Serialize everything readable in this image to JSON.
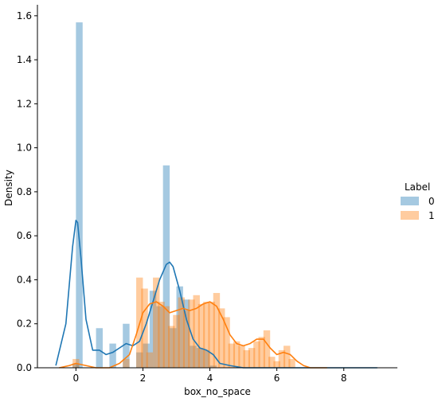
{
  "chart_data": {
    "type": "bar",
    "subtype": "histogram with KDE overlay",
    "title": "",
    "xlabel": "box_no_space",
    "ylabel": "Density",
    "xlim": [
      -1.15,
      9.6
    ],
    "ylim": [
      0,
      1.65
    ],
    "xticks": [
      "0",
      "2",
      "4",
      "6",
      "8"
    ],
    "yticks": [
      "0.0",
      "0.2",
      "0.4",
      "0.6",
      "0.8",
      "1.0",
      "1.2",
      "1.4",
      "1.6"
    ],
    "grid": false,
    "legend": {
      "title": "Label",
      "placement": "right",
      "entries": [
        "0",
        "1"
      ]
    },
    "bin_width": 0.2,
    "series": [
      {
        "name": "0",
        "color": "#1f77b4",
        "bins": [
          {
            "x0": -0.1,
            "y": 0.02
          },
          {
            "x0": 0.0,
            "y": 1.57
          },
          {
            "x0": 0.6,
            "y": 0.18
          },
          {
            "x0": 1.0,
            "y": 0.11
          },
          {
            "x0": 1.4,
            "y": 0.2
          },
          {
            "x0": 1.8,
            "y": 0.07
          },
          {
            "x0": 2.0,
            "y": 0.11
          },
          {
            "x0": 2.2,
            "y": 0.35
          },
          {
            "x0": 2.4,
            "y": 0.28
          },
          {
            "x0": 2.6,
            "y": 0.92
          },
          {
            "x0": 2.8,
            "y": 0.18
          },
          {
            "x0": 3.0,
            "y": 0.37
          },
          {
            "x0": 3.2,
            "y": 0.31
          },
          {
            "x0": 3.4,
            "y": 0.1
          },
          {
            "x0": 3.6,
            "y": 0.09
          },
          {
            "x0": 3.8,
            "y": 0.08
          },
          {
            "x0": 4.0,
            "y": 0.01
          }
        ],
        "kde": {
          "x": [
            -0.6,
            -0.3,
            -0.1,
            0.0,
            0.05,
            0.15,
            0.3,
            0.5,
            0.7,
            0.9,
            1.1,
            1.3,
            1.5,
            1.7,
            1.9,
            2.1,
            2.3,
            2.5,
            2.7,
            2.8,
            2.9,
            3.1,
            3.3,
            3.5,
            3.7,
            3.9,
            4.1,
            4.3,
            4.6,
            5.0,
            6.0,
            7.0,
            9.0
          ],
          "y": [
            0.01,
            0.2,
            0.55,
            0.67,
            0.66,
            0.5,
            0.22,
            0.08,
            0.08,
            0.06,
            0.07,
            0.09,
            0.11,
            0.1,
            0.12,
            0.2,
            0.3,
            0.4,
            0.47,
            0.48,
            0.46,
            0.35,
            0.22,
            0.13,
            0.09,
            0.08,
            0.06,
            0.02,
            0.01,
            0.0,
            0.0,
            0.0,
            0.0
          ]
        }
      },
      {
        "name": "1",
        "color": "#ff7f0e",
        "bins": [
          {
            "x0": -0.1,
            "y": 0.04
          },
          {
            "x0": 1.4,
            "y": 0.04
          },
          {
            "x0": 1.8,
            "y": 0.41
          },
          {
            "x0": 1.95,
            "y": 0.36
          },
          {
            "x0": 2.1,
            "y": 0.07
          },
          {
            "x0": 2.3,
            "y": 0.41
          },
          {
            "x0": 2.45,
            "y": 0.3
          },
          {
            "x0": 2.6,
            "y": 0.28
          },
          {
            "x0": 2.75,
            "y": 0.19
          },
          {
            "x0": 2.9,
            "y": 0.24
          },
          {
            "x0": 3.05,
            "y": 0.32
          },
          {
            "x0": 3.2,
            "y": 0.26
          },
          {
            "x0": 3.35,
            "y": 0.31
          },
          {
            "x0": 3.5,
            "y": 0.33
          },
          {
            "x0": 3.65,
            "y": 0.29
          },
          {
            "x0": 3.8,
            "y": 0.3
          },
          {
            "x0": 3.95,
            "y": 0.3
          },
          {
            "x0": 4.1,
            "y": 0.34
          },
          {
            "x0": 4.25,
            "y": 0.27
          },
          {
            "x0": 4.4,
            "y": 0.23
          },
          {
            "x0": 4.55,
            "y": 0.11
          },
          {
            "x0": 4.7,
            "y": 0.12
          },
          {
            "x0": 4.85,
            "y": 0.1
          },
          {
            "x0": 5.0,
            "y": 0.08
          },
          {
            "x0": 5.15,
            "y": 0.09
          },
          {
            "x0": 5.3,
            "y": 0.12
          },
          {
            "x0": 5.45,
            "y": 0.14
          },
          {
            "x0": 5.6,
            "y": 0.17
          },
          {
            "x0": 5.75,
            "y": 0.05
          },
          {
            "x0": 5.9,
            "y": 0.03
          },
          {
            "x0": 6.05,
            "y": 0.08
          },
          {
            "x0": 6.2,
            "y": 0.1
          },
          {
            "x0": 6.35,
            "y": 0.04
          }
        ],
        "kde": {
          "x": [
            -0.5,
            -0.2,
            0.0,
            0.3,
            0.6,
            1.0,
            1.3,
            1.6,
            1.8,
            2.0,
            2.2,
            2.4,
            2.6,
            2.8,
            3.0,
            3.2,
            3.4,
            3.6,
            3.8,
            4.0,
            4.2,
            4.4,
            4.6,
            4.8,
            5.0,
            5.2,
            5.4,
            5.6,
            5.8,
            6.0,
            6.2,
            6.4,
            6.6,
            6.8,
            7.0,
            7.5
          ],
          "y": [
            0.0,
            0.01,
            0.02,
            0.01,
            0.0,
            0.0,
            0.02,
            0.06,
            0.15,
            0.25,
            0.29,
            0.3,
            0.28,
            0.25,
            0.26,
            0.27,
            0.26,
            0.27,
            0.29,
            0.3,
            0.28,
            0.22,
            0.15,
            0.11,
            0.1,
            0.11,
            0.13,
            0.13,
            0.09,
            0.06,
            0.07,
            0.06,
            0.03,
            0.01,
            0.0,
            0.0
          ]
        }
      }
    ]
  }
}
